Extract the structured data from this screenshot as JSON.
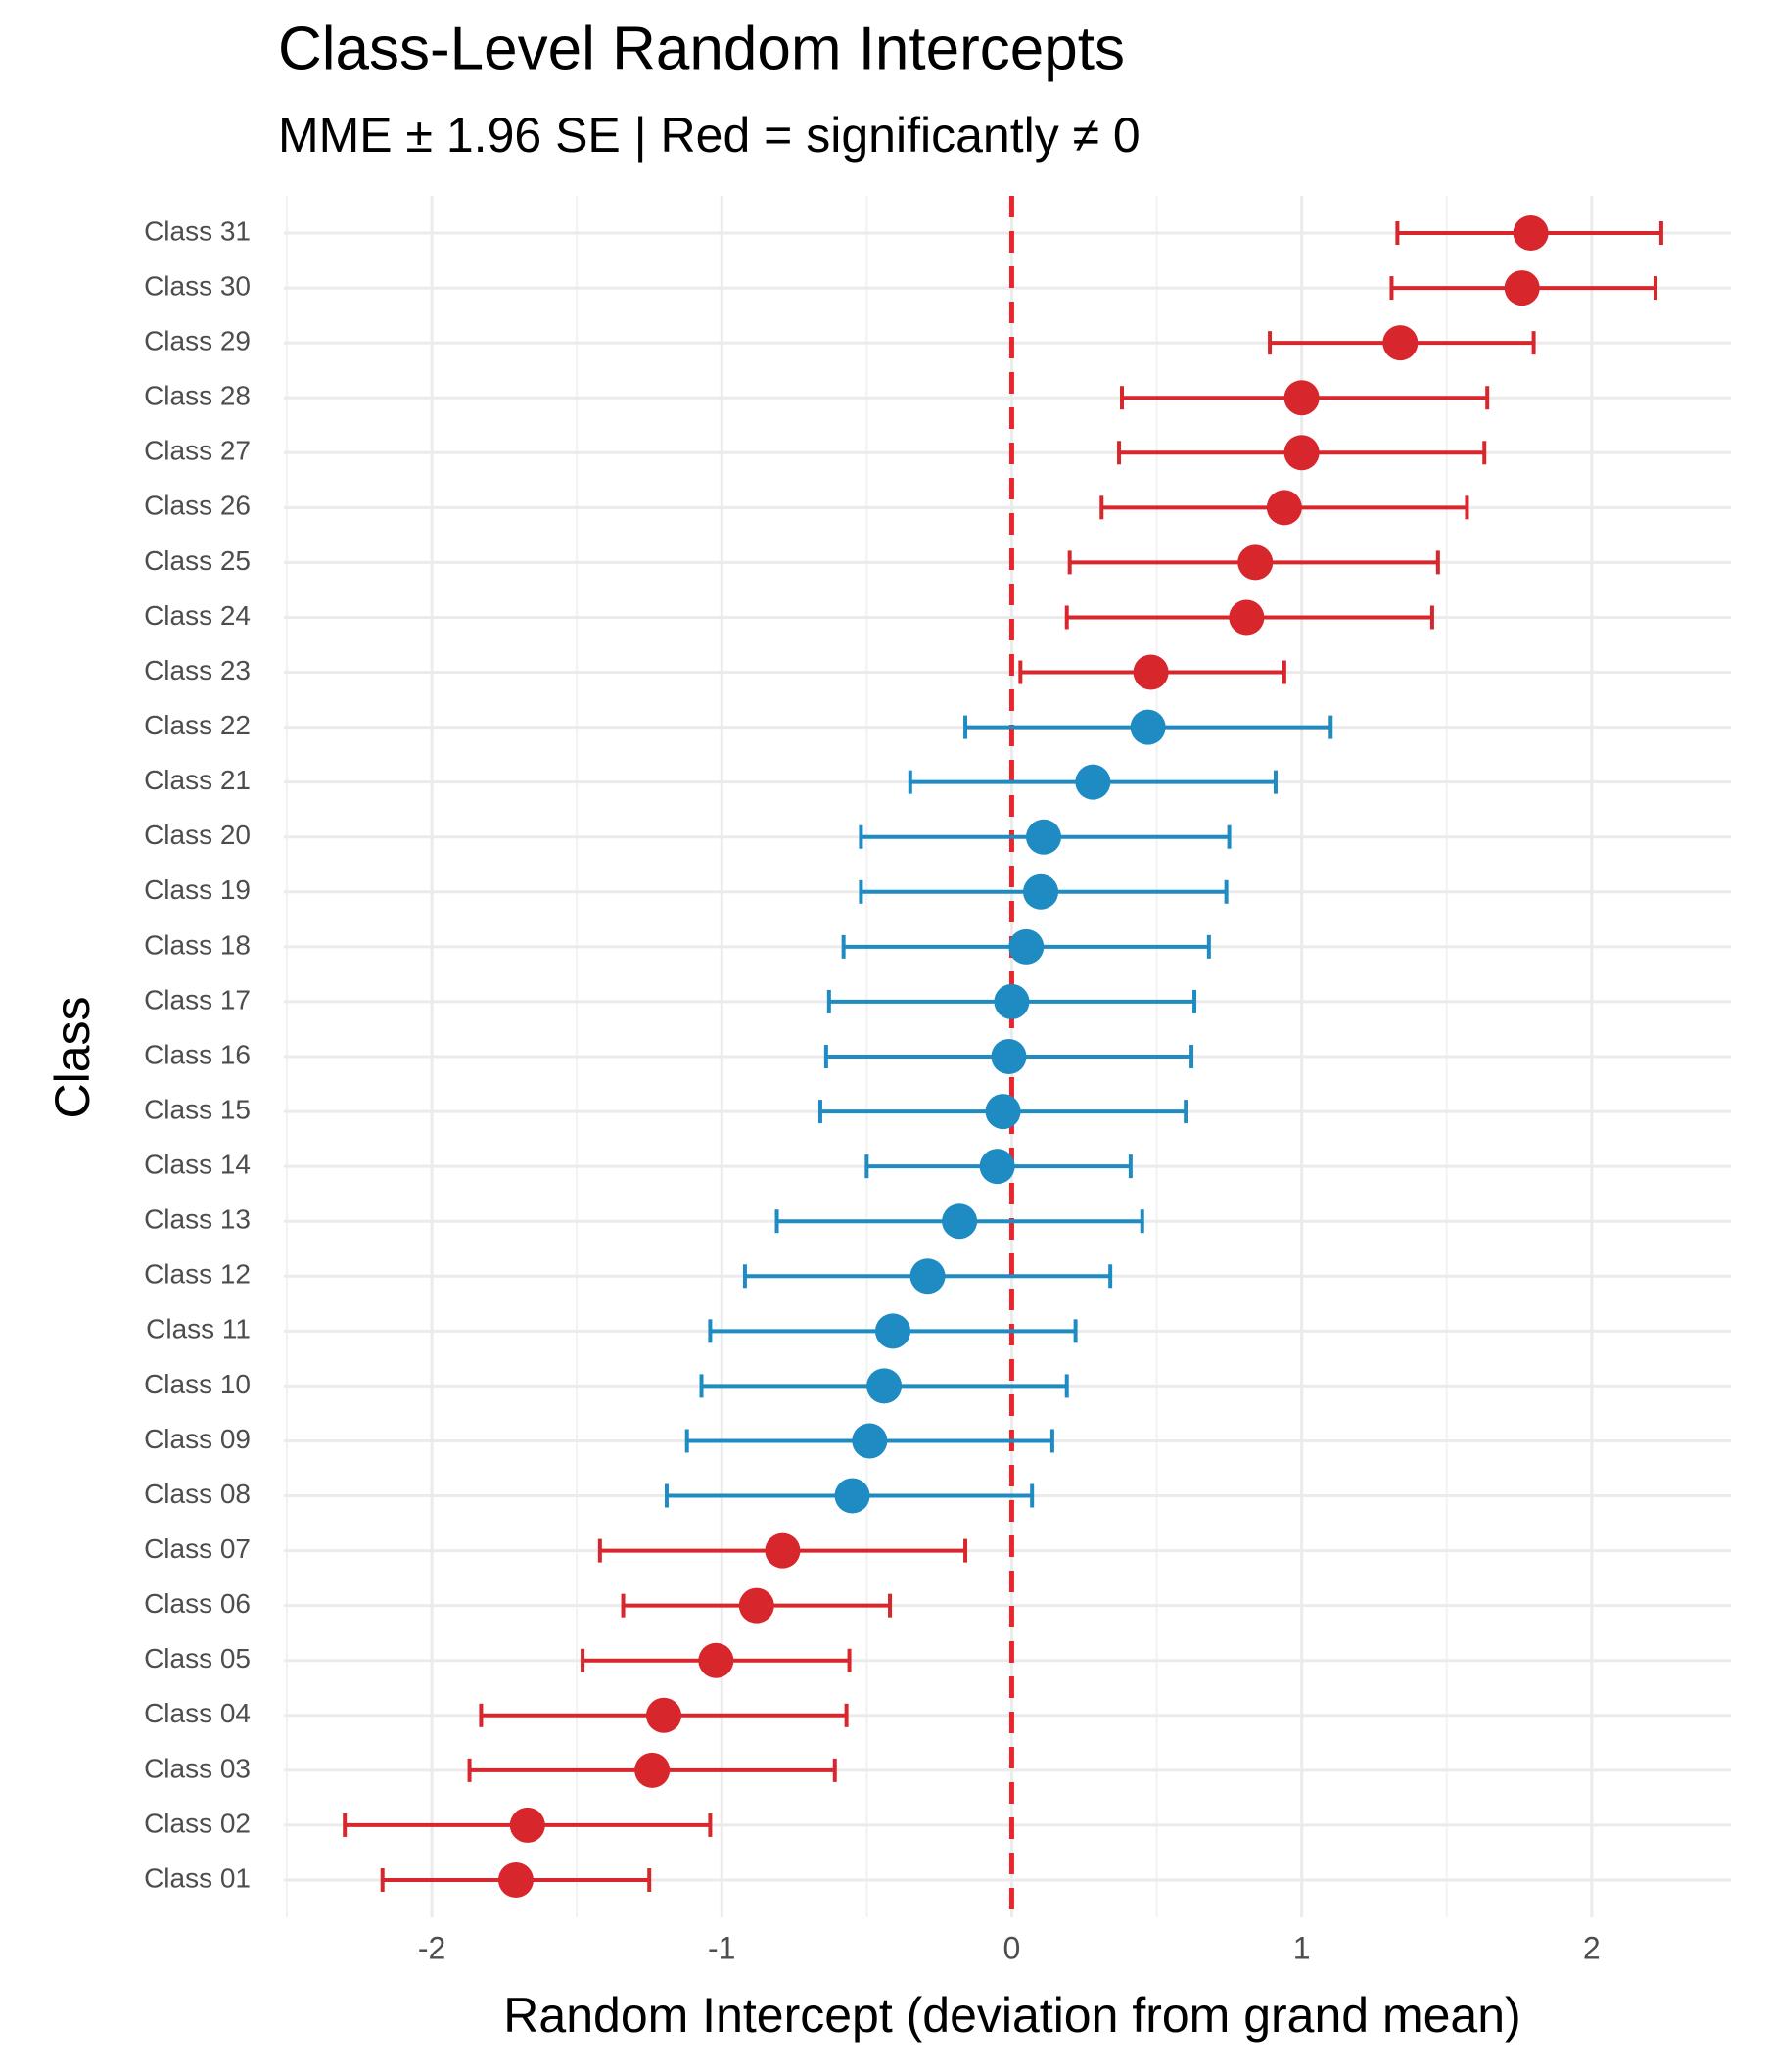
{
  "chart_data": {
    "type": "errorbar-dot",
    "title": "Class-Level Random Intercepts",
    "subtitle": "MME ± 1.96 SE | Red = significantly ≠ 0",
    "x_label": "Random Intercept (deviation from grand mean)",
    "y_label": "Class",
    "categories": [
      "Class 01",
      "Class 02",
      "Class 03",
      "Class 04",
      "Class 05",
      "Class 06",
      "Class 07",
      "Class 08",
      "Class 09",
      "Class 10",
      "Class 11",
      "Class 12",
      "Class 13",
      "Class 14",
      "Class 15",
      "Class 16",
      "Class 17",
      "Class 18",
      "Class 19",
      "Class 20",
      "Class 21",
      "Class 22",
      "Class 23",
      "Class 24",
      "Class 25",
      "Class 26",
      "Class 27",
      "Class 28",
      "Class 29",
      "Class 30",
      "Class 31"
    ],
    "values": [
      -1.71,
      -1.67,
      -1.24,
      -1.2,
      -1.02,
      -0.88,
      -0.79,
      -0.55,
      -0.49,
      -0.44,
      -0.41,
      -0.29,
      -0.18,
      -0.05,
      -0.03,
      -0.01,
      0.0,
      0.05,
      0.1,
      0.11,
      0.28,
      0.47,
      0.48,
      0.81,
      0.84,
      0.94,
      1.0,
      1.0,
      1.34,
      1.76,
      1.79
    ],
    "lower": [
      -2.17,
      -2.3,
      -1.87,
      -1.83,
      -1.48,
      -1.34,
      -1.42,
      -1.19,
      -1.12,
      -1.07,
      -1.04,
      -0.92,
      -0.81,
      -0.5,
      -0.66,
      -0.64,
      -0.63,
      -0.58,
      -0.52,
      -0.52,
      -0.35,
      -0.16,
      0.03,
      0.19,
      0.2,
      0.31,
      0.37,
      0.38,
      0.89,
      1.31,
      1.33
    ],
    "upper": [
      -1.25,
      -1.04,
      -0.61,
      -0.57,
      -0.56,
      -0.42,
      -0.16,
      0.07,
      0.14,
      0.19,
      0.22,
      0.34,
      0.45,
      0.41,
      0.6,
      0.62,
      0.63,
      0.68,
      0.74,
      0.75,
      0.91,
      1.1,
      0.94,
      1.45,
      1.47,
      1.57,
      1.63,
      1.64,
      1.8,
      2.22,
      2.24
    ],
    "point_colors": [
      "#d7262c",
      "#d7262c",
      "#d7262c",
      "#d7262c",
      "#d7262c",
      "#d7262c",
      "#d7262c",
      "#1f8bc3",
      "#1f8bc3",
      "#1f8bc3",
      "#1f8bc3",
      "#1f8bc3",
      "#1f8bc3",
      "#1f8bc3",
      "#1f8bc3",
      "#1f8bc3",
      "#1f8bc3",
      "#1f8bc3",
      "#1f8bc3",
      "#1f8bc3",
      "#1f8bc3",
      "#1f8bc3",
      "#d7262c",
      "#d7262c",
      "#d7262c",
      "#d7262c",
      "#d7262c",
      "#d7262c",
      "#d7262c",
      "#d7262c",
      "#d7262c"
    ],
    "xlim": [
      -2.51,
      2.48
    ],
    "xticks": [
      {
        "value": -2,
        "label": "-2"
      },
      {
        "value": -1,
        "label": "-1"
      },
      0,
      1,
      2
    ],
    "minor_xticks": [
      -2.5,
      -1.5,
      -0.5,
      0.5,
      1.5
    ],
    "reference_line": 0,
    "reference_color": "#e8262c",
    "grid": true
  }
}
